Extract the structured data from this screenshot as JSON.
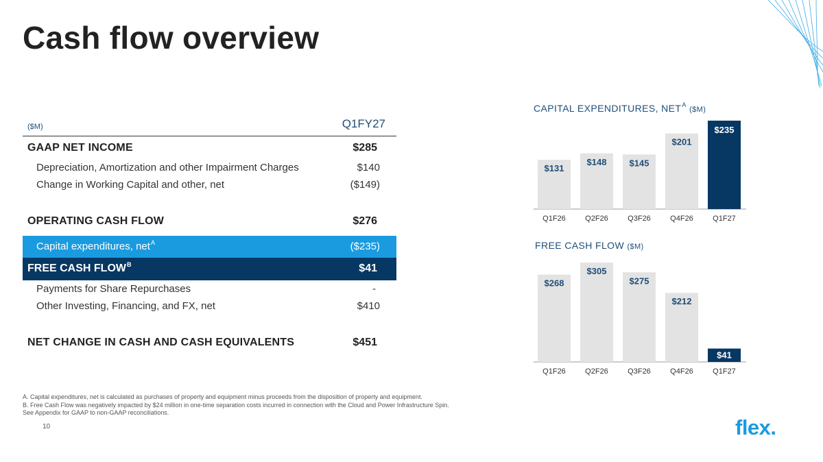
{
  "title": "Cash flow overview",
  "table": {
    "unit": "($M)",
    "column": "Q1FY27",
    "rows": {
      "gaap": {
        "label": "GAAP NET INCOME",
        "value": "$285"
      },
      "dep": {
        "label": "Depreciation, Amortization and other Impairment Charges",
        "value": "$140"
      },
      "wc": {
        "label": "Change in Working Capital and other, net",
        "value": "($149)"
      },
      "ocf": {
        "label": "OPERATING CASH FLOW",
        "value": "$276"
      },
      "capex": {
        "label": "Capital expenditures, net",
        "sup": "A",
        "value": "($235)"
      },
      "fcf": {
        "label": "FREE CASH FLOW",
        "sup": "B",
        "value": "$41"
      },
      "repurchase": {
        "label": "Payments for Share Repurchases",
        "value": "-"
      },
      "other": {
        "label": "Other Investing, Financing, and FX, net",
        "value": "$410"
      },
      "net": {
        "label": "NET CHANGE IN CASH AND CASH EQUIVALENTS",
        "value": "$451"
      }
    }
  },
  "chart_data": [
    {
      "type": "bar",
      "title": "CAPITAL EXPENDITURES, NET",
      "title_sup": "A",
      "unit": "($M)",
      "categories": [
        "Q1F26",
        "Q2F26",
        "Q3F26",
        "Q4F26",
        "Q1F27"
      ],
      "values": [
        131,
        148,
        145,
        201,
        235
      ],
      "labels": [
        "$131",
        "$148",
        "$145",
        "$201",
        "$235"
      ],
      "colors": [
        "#e3e3e3",
        "#e3e3e3",
        "#e3e3e3",
        "#e3e3e3",
        "#073763"
      ]
    },
    {
      "type": "bar",
      "title": "FREE CASH FLOW",
      "unit": "($M)",
      "categories": [
        "Q1F26",
        "Q2F26",
        "Q3F26",
        "Q4F26",
        "Q1F27"
      ],
      "values": [
        268,
        305,
        275,
        212,
        41
      ],
      "labels": [
        "$268",
        "$305",
        "$275",
        "$212",
        "$41"
      ],
      "colors": [
        "#e3e3e3",
        "#e3e3e3",
        "#e3e3e3",
        "#e3e3e3",
        "#073763"
      ]
    }
  ],
  "footnotes": {
    "a": "A.   Capital expenditures, net is calculated as purchases of property and equipment minus proceeds from the disposition of property and equipment.",
    "b": "B.   Free Cash Flow was negatively impacted by $24 million in one-time separation costs incurred in connection with the Cloud and Power Infrastructure Spin.",
    "c": "See Appendix for GAAP to non-GAAP reconciliations."
  },
  "page_number": "10",
  "logo": "flex.",
  "colors": {
    "accent_blue": "#1a9be0",
    "navy": "#073763",
    "bar_gray": "#e3e3e3",
    "label_blue": "#1f4e79"
  }
}
